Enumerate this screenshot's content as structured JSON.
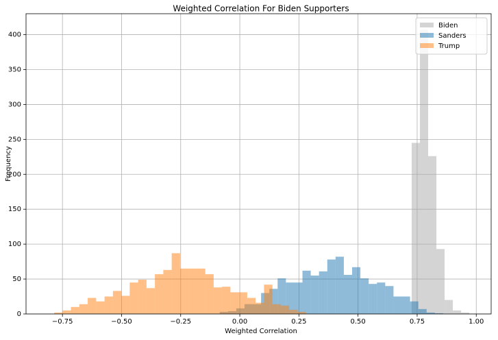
{
  "chart_data": {
    "type": "histogram",
    "title": "Weighted Correlation For Biden Supporters",
    "x_label": "Weighted Correlation",
    "y_label": "Frequency",
    "xlim": [
      -0.904,
      1.063
    ],
    "ylim": [
      0,
      430
    ],
    "xticks": [
      {
        "value": -0.75,
        "label": "−0.75"
      },
      {
        "value": -0.5,
        "label": "−0.50"
      },
      {
        "value": -0.25,
        "label": "−0.25"
      },
      {
        "value": 0,
        "label": "0.00"
      },
      {
        "value": 0.25,
        "label": "0.25"
      },
      {
        "value": 0.5,
        "label": "0.50"
      },
      {
        "value": 0.75,
        "label": "0.75"
      },
      {
        "value": 1,
        "label": "1.00"
      }
    ],
    "yticks": [
      0,
      50,
      100,
      150,
      200,
      250,
      300,
      350,
      400
    ],
    "grid": true,
    "legend": "upper right",
    "alpha": 0.5,
    "series": [
      {
        "name": "Biden",
        "color": "#a9a9a9",
        "bins": [
          0.727,
          0.7618,
          0.7966,
          0.8314,
          0.8662,
          0.901,
          0.9358,
          0.9706
        ],
        "values": [
          245,
          407,
          226,
          93,
          20,
          5,
          2
        ]
      },
      {
        "name": "Sanders",
        "color": "#1f77b4",
        "bins": [
          -0.085,
          -0.05,
          -0.015,
          0.02,
          0.055,
          0.09,
          0.125,
          0.16,
          0.195,
          0.23,
          0.265,
          0.3,
          0.335,
          0.37,
          0.405,
          0.44,
          0.475,
          0.51,
          0.545,
          0.58,
          0.615,
          0.65,
          0.685,
          0.72,
          0.755,
          0.79,
          0.825,
          0.86
        ],
        "values": [
          3,
          4,
          8,
          14,
          14,
          30,
          36,
          51,
          45,
          45,
          62,
          55,
          61,
          78,
          82,
          56,
          67,
          51,
          43,
          45,
          40,
          25,
          25,
          18,
          7,
          2,
          1
        ]
      },
      {
        "name": "Trump",
        "color": "#ff7f0e",
        "bins": [
          -0.785,
          -0.7495,
          -0.714,
          -0.6785,
          -0.643,
          -0.6075,
          -0.572,
          -0.5365,
          -0.501,
          -0.4655,
          -0.43,
          -0.3945,
          -0.359,
          -0.3235,
          -0.288,
          -0.2525,
          -0.217,
          -0.1815,
          -0.146,
          -0.1105,
          -0.075,
          -0.0395,
          -0.004,
          0.0315,
          0.067,
          0.1025,
          0.138,
          0.1735,
          0.209,
          0.2445,
          0.28
        ],
        "values": [
          2,
          5,
          10,
          14,
          23,
          18,
          25,
          33,
          26,
          45,
          49,
          37,
          57,
          63,
          87,
          65,
          65,
          65,
          57,
          38,
          39,
          31,
          31,
          23,
          16,
          42,
          14,
          12,
          6,
          3
        ]
      }
    ]
  }
}
